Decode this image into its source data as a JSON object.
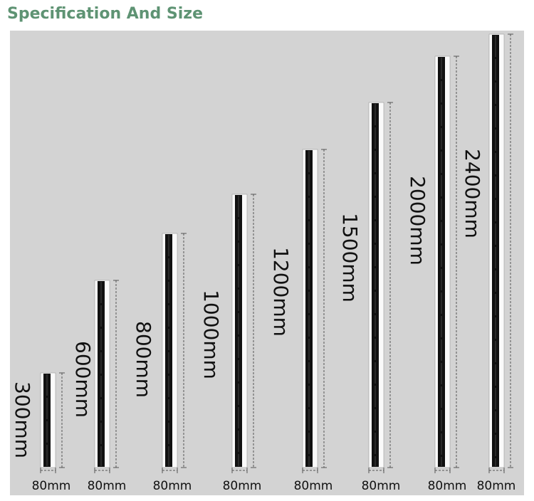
{
  "header": {
    "title": "Specification And Size"
  },
  "items": [
    {
      "length": "300mm",
      "width": "80mm"
    },
    {
      "length": "600mm",
      "width": "80mm"
    },
    {
      "length": "800mm",
      "width": "80mm"
    },
    {
      "length": "1000mm",
      "width": "80mm"
    },
    {
      "length": "1200mm",
      "width": "80mm"
    },
    {
      "length": "1500mm",
      "width": "80mm"
    },
    {
      "length": "2000mm",
      "width": "80mm"
    },
    {
      "length": "2400mm",
      "width": "80mm"
    }
  ]
}
